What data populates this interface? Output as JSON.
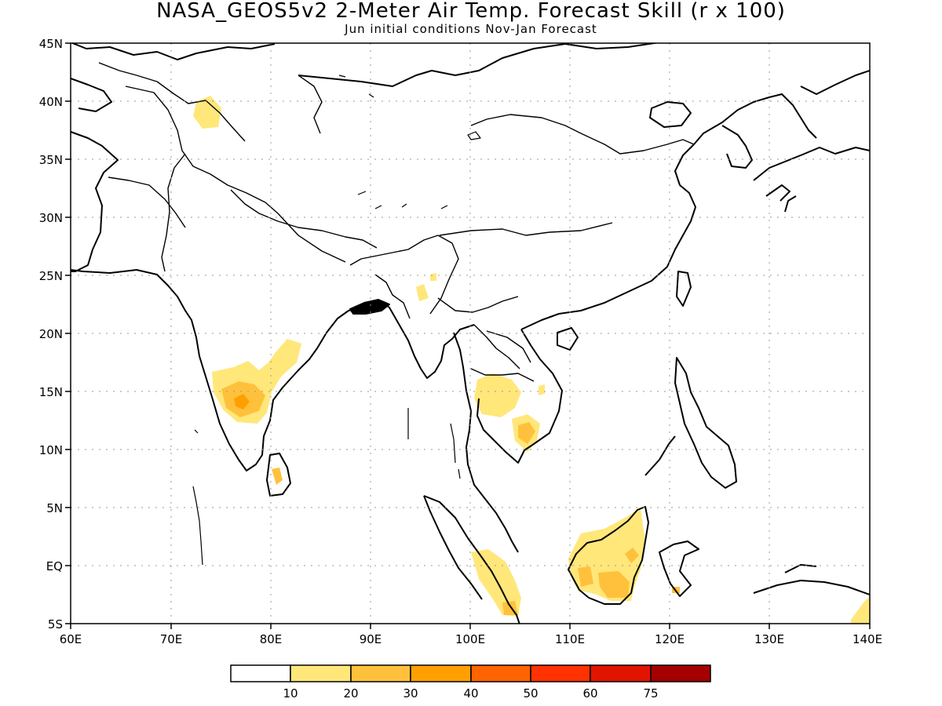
{
  "title": "NASA_GEOS5v2 2-Meter Air Temp. Forecast Skill (r x 100)",
  "subtitle": "Jun initial conditions   Nov-Jan Forecast",
  "map": {
    "lon_range": [
      60,
      140
    ],
    "lat_range": [
      -5,
      45
    ],
    "grid": true,
    "lon_labels": [
      "60E",
      "70E",
      "80E",
      "90E",
      "100E",
      "110E",
      "120E",
      "130E",
      "140E"
    ],
    "lat_labels": [
      "45N",
      "40N",
      "35N",
      "30N",
      "25N",
      "20N",
      "15N",
      "10N",
      "5N",
      "EQ",
      "5S"
    ]
  },
  "colorbar": {
    "labels": [
      "10",
      "20",
      "30",
      "40",
      "50",
      "60",
      "75"
    ],
    "colors": [
      "#ffffff",
      "#ffe77a",
      "#ffc13c",
      "#ffa000",
      "#ff6400",
      "#ff3200",
      "#e11400",
      "#a50000"
    ]
  }
}
